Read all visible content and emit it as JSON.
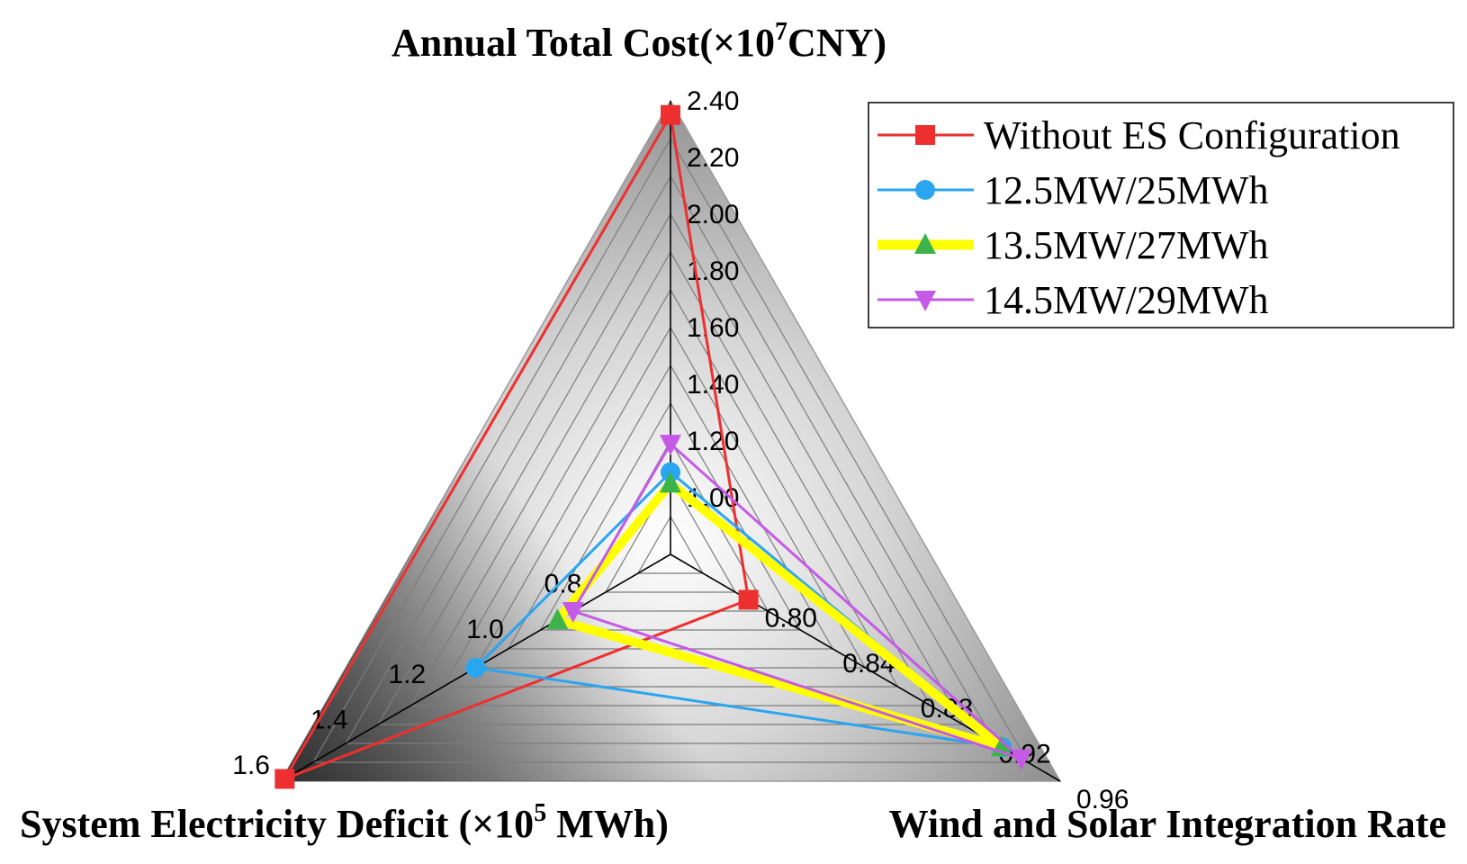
{
  "chart_data": {
    "type": "radar",
    "axes": [
      {
        "key": "cost",
        "title": "Annual Total Cost(×10",
        "title_sup": "7",
        "title_tail": "CNY)",
        "range": [
          0.8,
          2.4
        ],
        "ticks": [
          "1.00",
          "1.20",
          "1.40",
          "1.60",
          "1.80",
          "2.00",
          "2.20",
          "2.40"
        ],
        "tick_values": [
          1.0,
          1.2,
          1.4,
          1.6,
          1.8,
          2.0,
          2.2,
          2.4
        ]
      },
      {
        "key": "deficit",
        "title": "System Electricity Deficit (×10",
        "title_sup": "5",
        "title_tail": " MWh)",
        "range": [
          0.6,
          1.6
        ],
        "ticks": [
          "0.8",
          "1.0",
          "1.2",
          "1.4",
          "1.6"
        ],
        "tick_values": [
          0.8,
          1.0,
          1.2,
          1.4,
          1.6
        ]
      },
      {
        "key": "rate",
        "title": "Wind and Solar Integration Rate",
        "title_sup": "",
        "title_tail": "",
        "range": [
          0.76,
          0.96
        ],
        "ticks": [
          "0.80",
          "0.84",
          "0.88",
          "0.92",
          "0.96"
        ],
        "tick_values": [
          0.8,
          0.84,
          0.88,
          0.92,
          0.96
        ]
      }
    ],
    "series": [
      {
        "name": "Without ES Configuration",
        "color": "#ee2f2f",
        "marker": "square",
        "values": {
          "cost": 2.35,
          "deficit": 1.59,
          "rate": 0.8
        }
      },
      {
        "name": "12.5MW/25MWh",
        "color": "#2aa5f0",
        "marker": "circle",
        "values": {
          "cost": 1.09,
          "deficit": 1.1,
          "rate": 0.93
        }
      },
      {
        "name": "13.5MW/27MWh",
        "color": "#ffff00",
        "marker": "triangle-up",
        "marker_color": "#3cb44b",
        "values": {
          "cost": 1.05,
          "deficit": 0.89,
          "rate": 0.93
        }
      },
      {
        "name": "14.5MW/29MWh",
        "color": "#c55ae6",
        "marker": "triangle-down",
        "values": {
          "cost": 1.19,
          "deficit": 0.85,
          "rate": 0.94
        }
      }
    ],
    "legend_position": "top-right",
    "grid": true
  }
}
